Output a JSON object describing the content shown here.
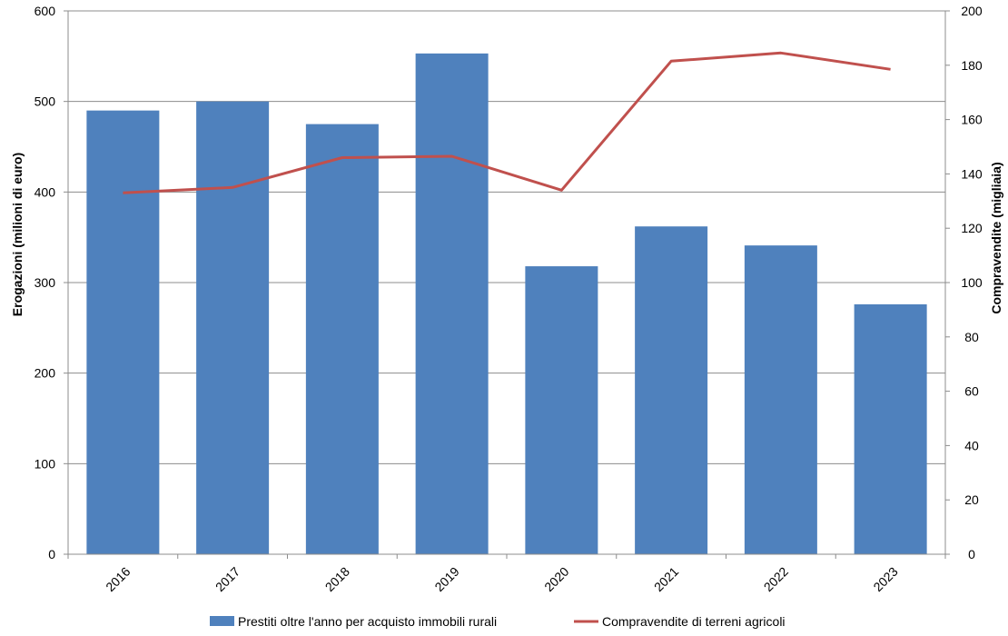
{
  "chart_data": {
    "type": "bar",
    "categories": [
      "2016",
      "2017",
      "2018",
      "2019",
      "2020",
      "2021",
      "2022",
      "2023"
    ],
    "title": "",
    "ylabel": "Erogazioni (milioni di euro)",
    "y2label": "Compravendite (migliaia)",
    "ylim": [
      0,
      600
    ],
    "y2lim": [
      0,
      200
    ],
    "yticks": [
      "0",
      "100",
      "200",
      "300",
      "400",
      "500",
      "600"
    ],
    "y2ticks": [
      "0",
      "20",
      "40",
      "60",
      "80",
      "100",
      "120",
      "140",
      "160",
      "180",
      "200"
    ],
    "grid": true,
    "legend_position": "bottom",
    "series": [
      {
        "name": "Prestiti oltre l'anno per acquisto immobili rurali",
        "type": "bar",
        "axis": "left",
        "color": "#4F81BD",
        "values": [
          490,
          500,
          475,
          553,
          318,
          362,
          341,
          276
        ]
      },
      {
        "name": "Compravendite di terreni agricoli",
        "type": "line",
        "axis": "right",
        "color": "#C0504D",
        "values": [
          133,
          135,
          146,
          146.5,
          134,
          181.5,
          184.5,
          178.5
        ]
      }
    ]
  }
}
